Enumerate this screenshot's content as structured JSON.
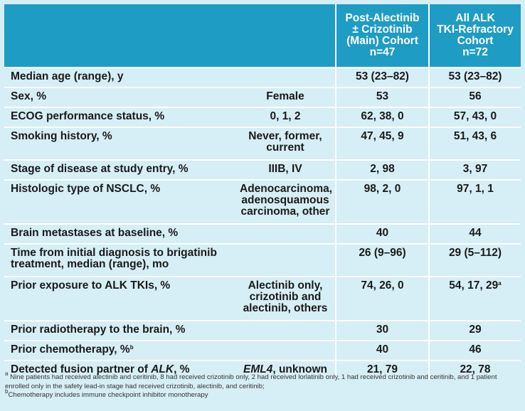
{
  "header": {
    "col_main": "Post-Alectinib ± Crizotinib (Main) Cohort n=47",
    "col_main_lines": [
      "Post-Alectinib",
      "± Crizotinib",
      "(Main) Cohort",
      "n=47"
    ],
    "col_all_lines": [
      "All ALK",
      "TKI-Refractory",
      "Cohort",
      "n=72"
    ]
  },
  "rows": [
    {
      "label": "Median age (range), y",
      "category": "",
      "main": "53 (23–82)",
      "all": "53 (23–82)"
    },
    {
      "label": "Sex, %",
      "category": "Female",
      "main": "53",
      "all": "56"
    },
    {
      "label": "ECOG performance status, %",
      "category": "0, 1, 2",
      "main": "62, 38, 0",
      "all": "57, 43, 0"
    },
    {
      "label": "Smoking history, %",
      "category": "Never, former, current",
      "main": "47, 45, 9",
      "all": "51, 43, 6"
    },
    {
      "label": "Stage of disease at study entry, %",
      "category": "IIIB, IV",
      "main": "2, 98",
      "all": "3, 97"
    },
    {
      "label": "Histologic type of NSCLC, %",
      "category": "Adenocarcinoma, adenosquamous carcinoma, other",
      "main": "98, 2, 0",
      "all": "97, 1, 1"
    },
    {
      "label": "Brain metastases at baseline, %",
      "category": "",
      "main": "40",
      "all": "44"
    },
    {
      "label": "Time from initial diagnosis to brigatinib treatment, median (range), mo",
      "category": "",
      "main": "26 (9–96)",
      "all": "29 (5–112)"
    },
    {
      "label": "Prior exposure to ALK TKIs, %",
      "category": "Alectinib only, crizotinib and alectinib, others",
      "main": "74, 26, 0",
      "all": "54, 17, 29",
      "all_sup": "a"
    },
    {
      "label": "Prior radiotherapy to the brain, %",
      "category": "",
      "main": "30",
      "all": "29"
    },
    {
      "label": "Prior chemotherapy, %",
      "label_sup": "b",
      "category": "",
      "main": "40",
      "all": "46"
    },
    {
      "label_pre": "Detected fusion partner of ",
      "label_italic": "ALK",
      "label_post": ", %",
      "category_italic": "EML4",
      "category_post": ", unknown",
      "main": "21, 79",
      "all": "22, 78"
    }
  ],
  "footnotes": {
    "a_mark": "a",
    "a_text": " Nine patients had received alectinib and ceritinib, 8 had received crizotinib only, 2 had received lorlatinib only, 1 had received crizotinib and ceritinib, and 1 patient enrolled only in the safety lead-in stage had received crizotinib, alectinib, and ceritinib;",
    "b_mark": "b",
    "b_text": "Chemotherapy includes immune checkpoint inhibitor monotherapy"
  },
  "colors": {
    "header_bg": "#1f9cc3",
    "body_bg": "#d6eef5",
    "rule": "#ffffff"
  }
}
